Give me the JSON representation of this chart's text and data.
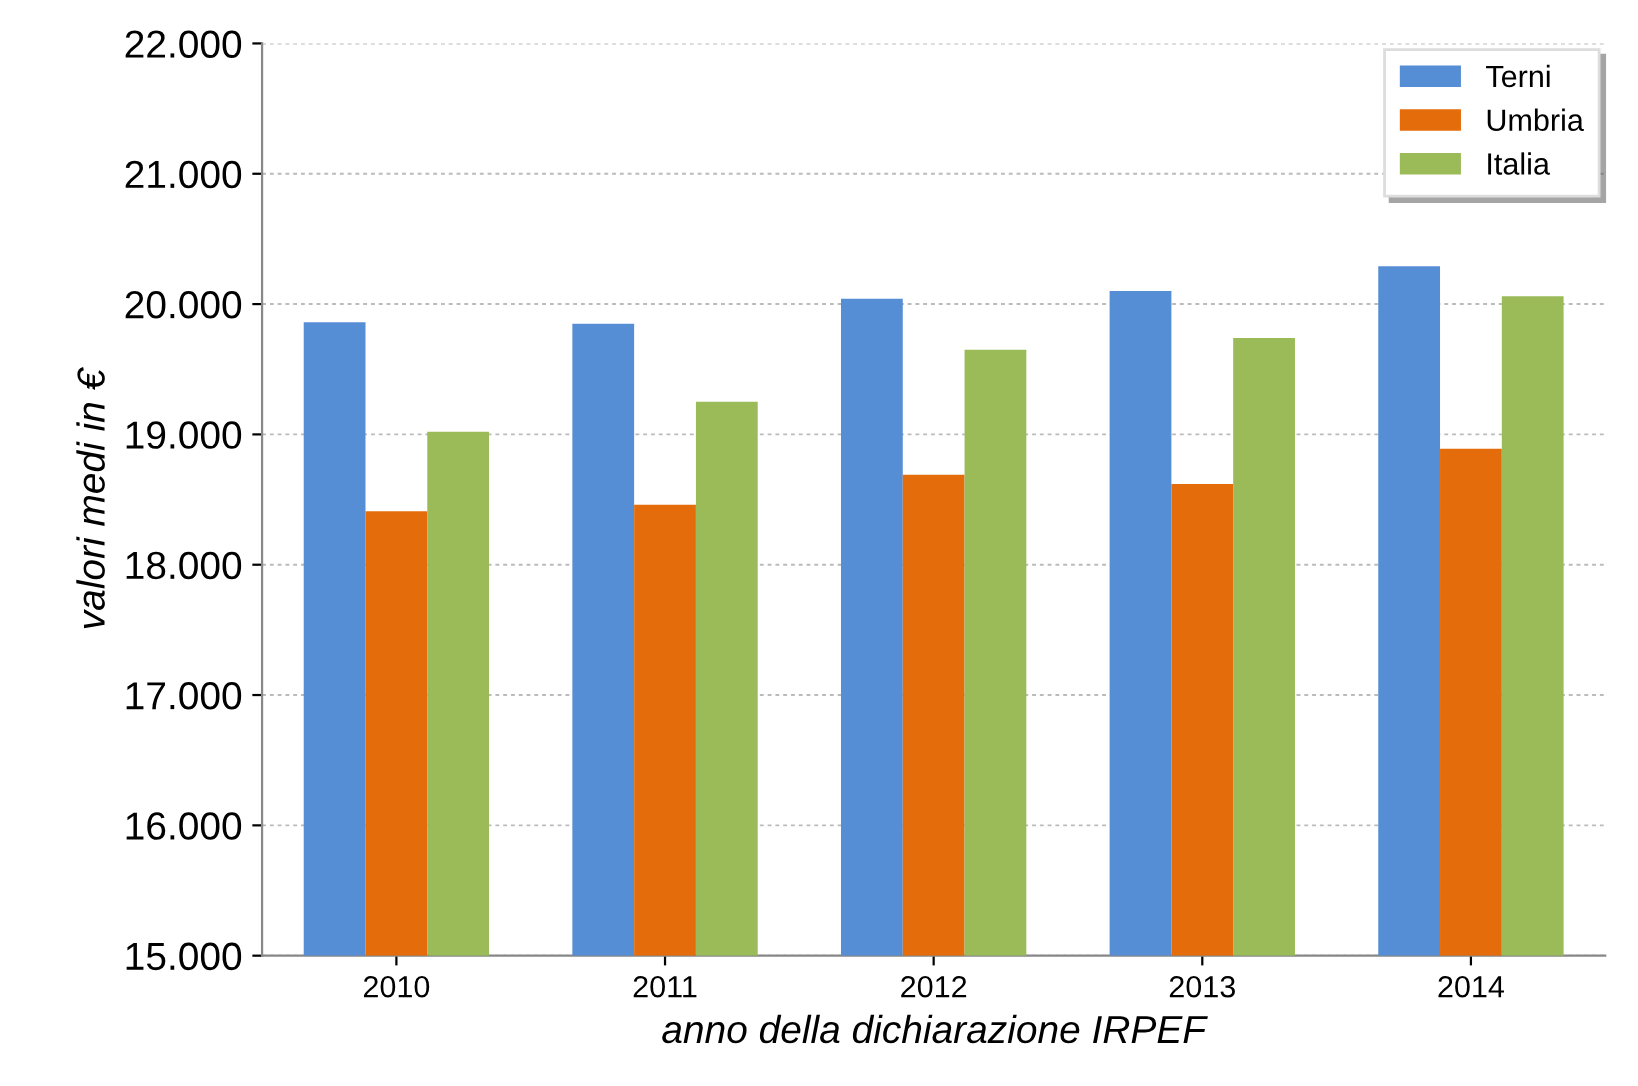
{
  "chart_data": {
    "type": "bar",
    "xlabel": "anno della dichiarazione IRPEF",
    "ylabel": "valori medi in €",
    "categories": [
      "2010",
      "2011",
      "2012",
      "2013",
      "2014"
    ],
    "series": [
      {
        "name": "Terni",
        "color": "#558ed5",
        "values": [
          19860,
          19850,
          20040,
          20100,
          20290
        ]
      },
      {
        "name": "Umbria",
        "color": "#e46c0a",
        "values": [
          18410,
          18460,
          18690,
          18620,
          18890
        ]
      },
      {
        "name": "Italia",
        "color": "#9bbb59",
        "values": [
          19020,
          19250,
          19650,
          19740,
          20060
        ]
      }
    ],
    "ylim": [
      15000,
      22000
    ],
    "yticks": [
      {
        "value": 15000,
        "label": "15.000"
      },
      {
        "value": 16000,
        "label": "16.000"
      },
      {
        "value": 17000,
        "label": "17.000"
      },
      {
        "value": 18000,
        "label": "18.000"
      },
      {
        "value": 19000,
        "label": "19.000"
      },
      {
        "value": 20000,
        "label": "20.000"
      },
      {
        "value": 21000,
        "label": "21.000"
      },
      {
        "value": 22000,
        "label": "22.000"
      }
    ],
    "grid": "y",
    "legend": "top right"
  }
}
